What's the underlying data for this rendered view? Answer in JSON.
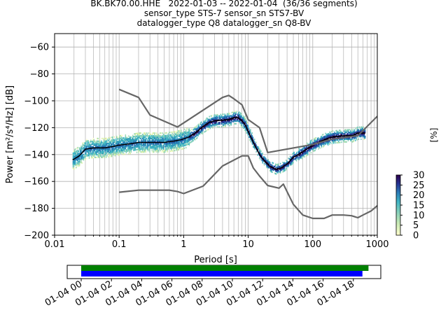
{
  "header": {
    "title_lines": [
      "BK.BK70.00.HHE   2022-01-03 -- 2022-01-04  (36/36 segments)",
      "sensor_type STS-7 sensor_sn STS7-BV",
      "datalogger_type Q8 datalogger_sn Q8-BV"
    ]
  },
  "chart_data": [
    {
      "type": "heatmap",
      "title": "BK.BK70.00.HHE   2022-01-03 -- 2022-01-04  (36/36 segments)",
      "xlabel": "Period [s]",
      "ylabel": "Power [m²/s⁴/Hz] [dB]",
      "xscale": "log",
      "xlim": [
        0.01,
        1000
      ],
      "ylim": [
        -200,
        -50
      ],
      "x_tick_labels": [
        "0.01",
        "0.1",
        "1",
        "10",
        "100",
        "1000"
      ],
      "y_ticks": [
        -60,
        -80,
        -100,
        -120,
        -140,
        -160,
        -180,
        -200
      ],
      "grid": true,
      "colorbar": {
        "label": "[%]",
        "min": 0,
        "max": 30,
        "ticks": [
          0,
          5,
          10,
          15,
          20,
          25,
          30
        ],
        "colors": [
          "#ffffcc",
          "#a1dab4",
          "#41b6c4",
          "#2c7fb8",
          "#253494",
          "#2d004b"
        ]
      },
      "series": [
        {
          "name": "",
          "color": "#000000",
          "points": [
            [
              0.019,
              -144
            ],
            [
              0.024,
              -141
            ],
            [
              0.03,
              -136
            ],
            [
              0.04,
              -135
            ],
            [
              0.06,
              -135
            ],
            [
              0.08,
              -134
            ],
            [
              0.1,
              -133
            ],
            [
              0.15,
              -132
            ],
            [
              0.2,
              -131
            ],
            [
              0.3,
              -131
            ],
            [
              0.5,
              -131
            ],
            [
              0.7,
              -130
            ],
            [
              0.9,
              -129
            ],
            [
              1.2,
              -127
            ],
            [
              1.5,
              -124
            ],
            [
              2,
              -119
            ],
            [
              2.5,
              -116
            ],
            [
              3,
              -115
            ],
            [
              4,
              -114.5
            ],
            [
              5,
              -114
            ],
            [
              6,
              -112.5
            ],
            [
              7,
              -112.5
            ],
            [
              8,
              -115
            ],
            [
              9,
              -118
            ],
            [
              10,
              -123
            ],
            [
              12,
              -131
            ],
            [
              15,
              -140
            ],
            [
              18,
              -145
            ],
            [
              22,
              -149
            ],
            [
              27,
              -151
            ],
            [
              32,
              -150
            ],
            [
              40,
              -147
            ],
            [
              50,
              -142
            ],
            [
              60,
              -140
            ],
            [
              80,
              -136
            ],
            [
              100,
              -133
            ],
            [
              150,
              -129
            ],
            [
              200,
              -127
            ],
            [
              300,
              -126
            ],
            [
              400,
              -126
            ],
            [
              500,
              -124
            ],
            [
              650,
              -124
            ]
          ]
        },
        {
          "name": "",
          "color": "#666666",
          "points": [
            [
              0.1,
              -91.5
            ],
            [
              0.2,
              -97.5
            ],
            [
              0.3,
              -110.5
            ],
            [
              0.8,
              -119.5
            ],
            [
              4,
              -97.5
            ],
            [
              5,
              -96
            ],
            [
              6,
              -98.5
            ],
            [
              8,
              -103
            ],
            [
              10,
              -114
            ],
            [
              15,
              -120
            ],
            [
              20,
              -138.5
            ],
            [
              100,
              -132.5
            ],
            [
              200,
              -128.5
            ],
            [
              500,
              -126
            ],
            [
              1000,
              -111.5
            ]
          ]
        },
        {
          "name": "",
          "color": "#666666",
          "points": [
            [
              0.1,
              -168
            ],
            [
              0.2,
              -166.5
            ],
            [
              0.6,
              -166.5
            ],
            [
              0.8,
              -167.5
            ],
            [
              1,
              -169
            ],
            [
              2,
              -163.5
            ],
            [
              4,
              -148.5
            ],
            [
              8,
              -141
            ],
            [
              10,
              -141
            ],
            [
              12,
              -150
            ],
            [
              15,
              -156
            ],
            [
              20,
              -163
            ],
            [
              30,
              -165
            ],
            [
              35,
              -162
            ],
            [
              50,
              -177
            ],
            [
              70,
              -185
            ],
            [
              100,
              -187.5
            ],
            [
              150,
              -187.5
            ],
            [
              200,
              -185
            ],
            [
              300,
              -185
            ],
            [
              400,
              -185.5
            ],
            [
              500,
              -187
            ],
            [
              600,
              -185
            ],
            [
              800,
              -182
            ],
            [
              1000,
              -178
            ]
          ]
        }
      ]
    },
    {
      "type": "bar",
      "title": "",
      "x_tick_labels": [
        "01-04 00",
        "01-04 02",
        "01-04 04",
        "01-04 06",
        "01-04 08",
        "01-04 10",
        "01-04 12",
        "01-04 14",
        "01-04 16",
        "01-04 18"
      ],
      "series": [
        {
          "name": "",
          "color": "#008000",
          "start_hour": 0,
          "end_hour": 19.0
        },
        {
          "name": "",
          "color": "#0000ff",
          "start_hour": 0,
          "end_hour": 18.6
        }
      ]
    }
  ]
}
